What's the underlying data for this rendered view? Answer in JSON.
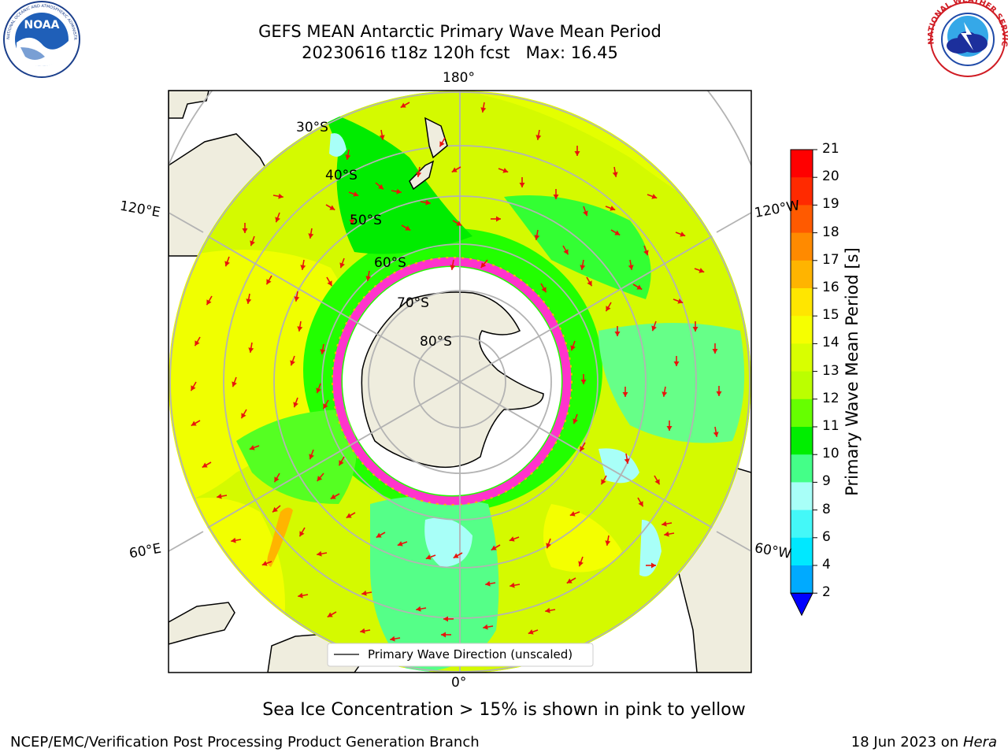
{
  "title_line1": "GEFS MEAN Antarctic Primary Wave Mean Period",
  "title_line2": "20230616 t18z 120h fcst   Max: 16.45",
  "logos": {
    "left": {
      "name": "NOAA",
      "ring_text": "NATIONAL OCEANIC AND ATMOSPHERIC ADMINISTRATION · U.S. DEPARTMENT OF COMMERCE"
    },
    "right": {
      "name": "NATIONAL WEATHER SERVICE"
    }
  },
  "map": {
    "latitude_labels": [
      "30°S",
      "40°S",
      "50°S",
      "60°S",
      "70°S",
      "80°S"
    ],
    "longitude_labels": {
      "top": "180°",
      "bottom": "0°",
      "left_upper": "120°E",
      "left_lower": "60°E",
      "right_upper": "120°W",
      "right_lower": "60°W"
    },
    "legend_entry": "Primary Wave Direction (unscaled)",
    "arrow_color": "#e8140c",
    "sea_ice_color": "#ff33cc",
    "land_color": "#efedde"
  },
  "colorbar": {
    "label": "Primary Wave Mean Period [s]",
    "ticks": [
      "2",
      "4",
      "6",
      "8",
      "9",
      "10",
      "11",
      "12",
      "13",
      "14",
      "15",
      "16",
      "17",
      "18",
      "19",
      "20",
      "21"
    ],
    "colors": [
      "#0a60ff",
      "#00aaff",
      "#00e8ff",
      "#44f8f8",
      "#a8fff8",
      "#44ff88",
      "#00ee00",
      "#66ff00",
      "#bbff00",
      "#d8ff00",
      "#f6ff00",
      "#ffe600",
      "#ffb400",
      "#ff8a00",
      "#ff5a00",
      "#ff2a00",
      "#ff0000"
    ],
    "under_color": "#0000ff"
  },
  "footer": {
    "note": "Sea Ice Concentration > 15% is shown in pink to yellow",
    "left": "NCEP/EMC/Verification Post Processing Product Generation Branch",
    "right_prefix": "18 Jun 2023 on ",
    "right_host": "Hera"
  }
}
